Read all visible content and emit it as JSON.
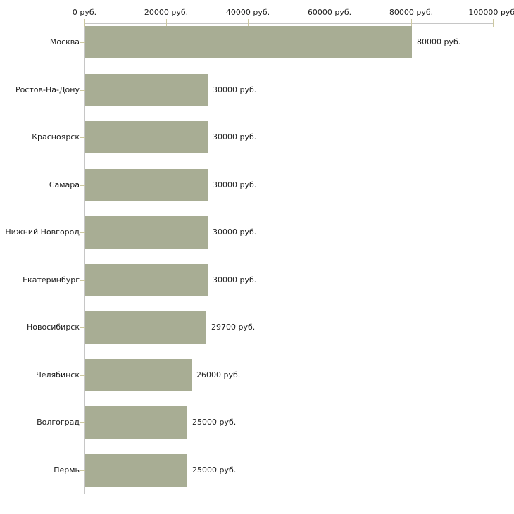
{
  "chart_data": {
    "type": "bar",
    "orientation": "horizontal",
    "title": "",
    "xlabel": "",
    "ylabel": "",
    "unit": "руб.",
    "categories": [
      "Москва",
      "Ростов-На-Дону",
      "Красноярск",
      "Самара",
      "Нижний Новгород",
      "Екатеринбург",
      "Новосибирск",
      "Челябинск",
      "Волгоград",
      "Пермь"
    ],
    "values": [
      80000,
      30000,
      30000,
      30000,
      30000,
      30000,
      29700,
      26000,
      25000,
      25000
    ],
    "value_labels": [
      "80000 руб.",
      "30000 руб.",
      "30000 руб.",
      "30000 руб.",
      "30000 руб.",
      "30000 руб.",
      "29700 руб.",
      "26000 руб.",
      "25000 руб.",
      "25000 руб."
    ],
    "x_ticks": [
      0,
      20000,
      40000,
      60000,
      80000,
      100000
    ],
    "x_tick_labels": [
      "0 руб.",
      "20000 руб.",
      "40000 руб.",
      "60000 руб.",
      "80000 руб.",
      "100000 руб."
    ],
    "xlim": [
      0,
      100000
    ],
    "grid": "off",
    "legend_position": "none",
    "colors": {
      "bar": "#a8ad94",
      "axis_line": "#c6c6c6",
      "tick": "#ccc8a0",
      "text": "#1c1c1c",
      "background": "#ffffff"
    }
  }
}
